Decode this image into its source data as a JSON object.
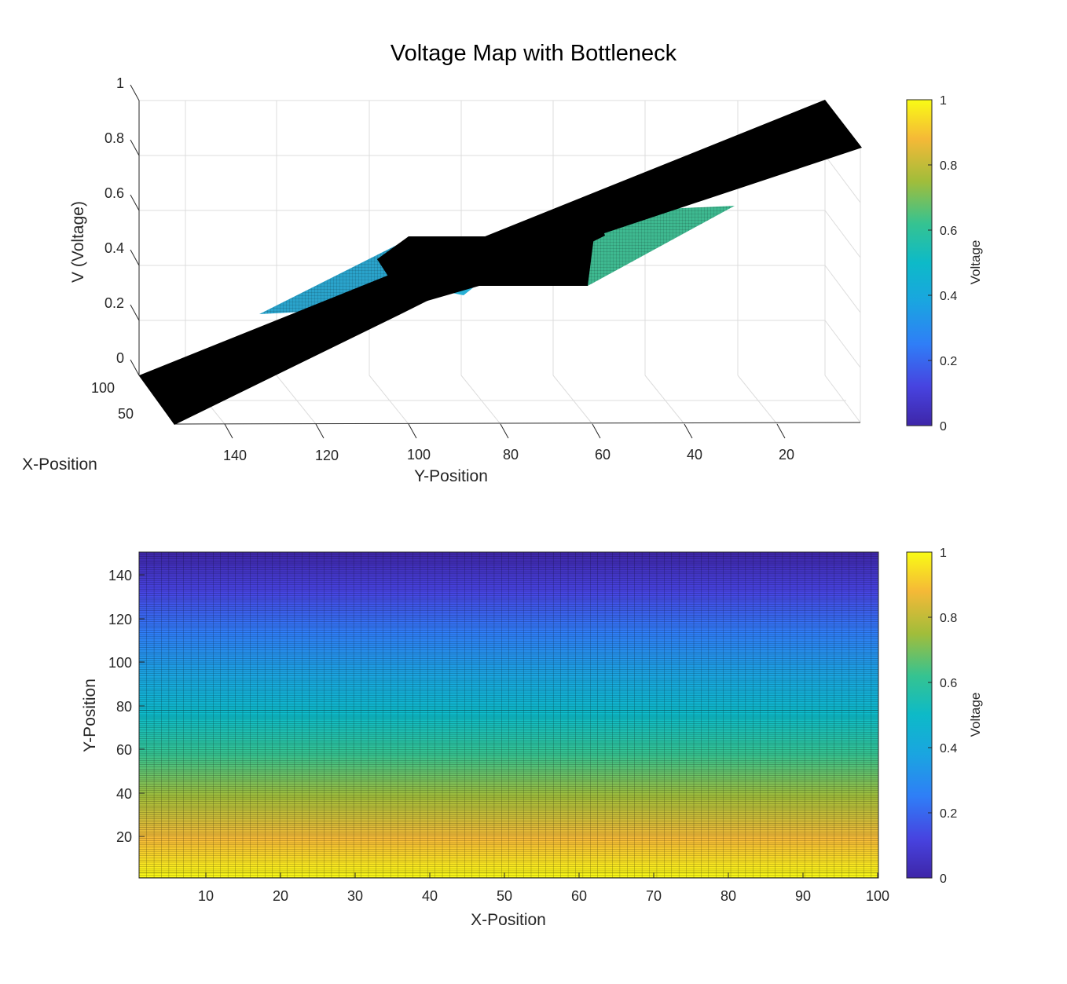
{
  "title": "Voltage Map with Bottleneck",
  "chart_data": [
    {
      "type": "surface",
      "view": "3d",
      "title": "Voltage Map with Bottleneck",
      "xlabel": "X-Position",
      "ylabel": "Y-Position",
      "zlabel": "V (Voltage)",
      "x_ticks": [
        50,
        100
      ],
      "y_ticks": [
        140,
        120,
        100,
        80,
        60,
        40,
        20
      ],
      "z_ticks": [
        0,
        0.2,
        0.4,
        0.6,
        0.8,
        1
      ],
      "x_ticks_text": [
        "50",
        "100"
      ],
      "y_ticks_text": [
        "140",
        "120",
        "100",
        "80",
        "60",
        "40",
        "20"
      ],
      "z_ticks_text": [
        "0",
        "0.2",
        "0.4",
        "0.6",
        "0.8",
        "1"
      ],
      "xlim": [
        1,
        100
      ],
      "ylim": [
        1,
        150
      ],
      "zlim": [
        0,
        1
      ],
      "grid": true,
      "voltage_profile": [
        {
          "y": 1,
          "v": 1.0
        },
        {
          "y": 40,
          "v": 0.74
        },
        {
          "y": 60,
          "v": 0.6
        },
        {
          "y": 90,
          "v": 0.4
        },
        {
          "y": 150,
          "v": 0.0
        }
      ],
      "bottleneck": {
        "y_range": [
          60,
          90
        ],
        "x_range": [
          40,
          60
        ]
      },
      "colorbar": {
        "label": "Voltage",
        "range": [
          0,
          1
        ],
        "ticks": [
          "0",
          "0.2",
          "0.4",
          "0.6",
          "0.8",
          "1"
        ]
      }
    },
    {
      "type": "heatmap",
      "view": "2d",
      "xlabel": "X-Position",
      "ylabel": "Y-Position",
      "x_ticks": [
        10,
        20,
        30,
        40,
        50,
        60,
        70,
        80,
        90,
        100
      ],
      "y_ticks": [
        20,
        40,
        60,
        80,
        100,
        120,
        140
      ],
      "x_ticks_text": [
        "10",
        "20",
        "30",
        "40",
        "50",
        "60",
        "70",
        "80",
        "90",
        "100"
      ],
      "y_ticks_text": [
        "20",
        "40",
        "60",
        "80",
        "100",
        "120",
        "140"
      ],
      "xlim": [
        1,
        100
      ],
      "ylim": [
        1,
        150
      ],
      "grid_columns": 100,
      "grid_rows": 150,
      "voltage_at_y": [
        {
          "y": 1,
          "v": 1.0
        },
        {
          "y": 75,
          "v": 0.5
        },
        {
          "y": 150,
          "v": 0.0
        }
      ],
      "colorbar": {
        "label": "Voltage",
        "range": [
          0,
          1
        ],
        "ticks": [
          "0",
          "0.2",
          "0.4",
          "0.6",
          "0.8",
          "1"
        ]
      }
    }
  ]
}
